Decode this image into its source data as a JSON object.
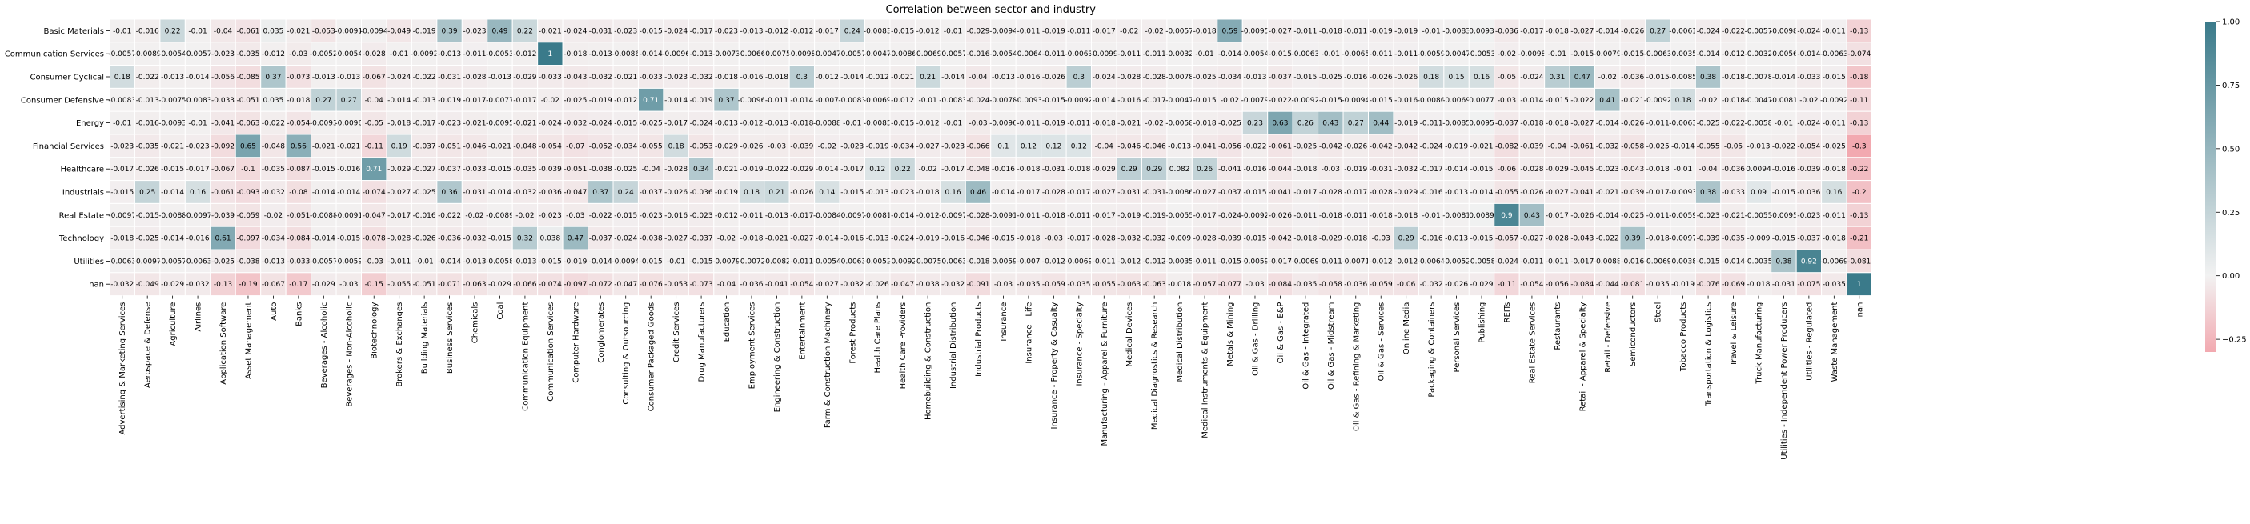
{
  "chart_data": {
    "type": "heatmap",
    "title": "Correlation between sector and industry",
    "xlabel": "",
    "ylabel": "",
    "rows": [
      "Basic Materials",
      "Communication Services",
      "Consumer Cyclical",
      "Consumer Defensive",
      "Energy",
      "Financial Services",
      "Healthcare",
      "Industrials",
      "Real Estate",
      "Technology",
      "Utilities",
      "nan"
    ],
    "columns": [
      "Advertising & Marketing Services",
      "Aerospace & Defense",
      "Agriculture",
      "Airlines",
      "Application Software",
      "Asset Management",
      "Auto",
      "Banks",
      "Beverages - Alcoholic",
      "Beverages - Non-Alcoholic",
      "Biotechnology",
      "Brokers & Exchanges",
      "Building Materials",
      "Business Services",
      "Chemicals",
      "Coal",
      "Communication Equipment",
      "Communication Services",
      "Computer Hardware",
      "Conglomerates",
      "Consulting & Outsourcing",
      "Consumer Packaged Goods",
      "Credit Services",
      "Drug Manufacturers",
      "Education",
      "Employment Services",
      "Engineering & Construction",
      "Entertainment",
      "Farm & Construction Machinery",
      "Forest Products",
      "Health Care Plans",
      "Health Care Providers",
      "Homebuilding & Construction",
      "Industrial Distribution",
      "Industrial Products",
      "Insurance",
      "Insurance - Life",
      "Insurance - Property & Casualty",
      "Insurance - Specialty",
      "Manufacturing - Apparel & Furniture",
      "Medical Devices",
      "Medical Diagnostics & Research",
      "Medical Distribution",
      "Medical Instruments & Equipment",
      "Metals & Mining",
      "Oil & Gas - Drilling",
      "Oil & Gas - E&P",
      "Oil & Gas - Integrated",
      "Oil & Gas - Midstream",
      "Oil & Gas - Refining & Marketing",
      "Oil & Gas - Services",
      "Online Media",
      "Packaging & Containers",
      "Personal Services",
      "Publishing",
      "REITs",
      "Real Estate Services",
      "Restaurants",
      "Retail - Apparel & Specialty",
      "Retail - Defensive",
      "Semiconductors",
      "Steel",
      "Tobacco Products",
      "Transportation & Logistics",
      "Travel & Leisure",
      "Truck Manufacturing",
      "Utilities - Independent Power Producers",
      "Utilities - Regulated",
      "Waste Management",
      "nan"
    ],
    "values": [
      [
        -0.01,
        -0.016,
        0.22,
        -0.01,
        -0.04,
        -0.061,
        0.035,
        -0.021,
        -0.053,
        -0.0091,
        -0.0094,
        -0.049,
        -0.019,
        0.39,
        -0.023,
        0.49,
        0.22,
        -0.021,
        -0.024,
        -0.031,
        -0.023,
        -0.015,
        -0.024,
        -0.017,
        -0.023,
        -0.013,
        -0.012,
        -0.012,
        -0.017,
        0.24,
        -0.0083,
        -0.015,
        -0.012,
        -0.01,
        -0.029,
        -0.0094,
        -0.011,
        -0.019,
        -0.011,
        -0.017,
        -0.02,
        -0.02,
        -0.0057,
        -0.018,
        0.59,
        -0.0095,
        -0.027,
        -0.011,
        -0.018,
        -0.011,
        -0.019,
        -0.019,
        -0.01,
        -0.0083,
        0.0093,
        -0.036,
        -0.017,
        -0.018,
        -0.027,
        -0.014,
        -0.026,
        0.27,
        -0.0061,
        -0.024,
        -0.022,
        -0.0057,
        -0.0098,
        -0.024,
        -0.011,
        -0.13
      ],
      [
        -0.0057,
        -0.0089,
        -0.0054,
        -0.0057,
        -0.023,
        -0.035,
        -0.012,
        -0.03,
        -0.0052,
        -0.0054,
        -0.028,
        -0.01,
        -0.0092,
        -0.013,
        -0.011,
        -0.0053,
        -0.012,
        1,
        -0.018,
        -0.013,
        -0.0086,
        -0.014,
        -0.0096,
        -0.013,
        -0.0073,
        -0.0066,
        -0.0075,
        -0.0098,
        -0.0047,
        -0.0057,
        -0.0047,
        -0.0086,
        -0.0069,
        -0.0057,
        -0.016,
        -0.0054,
        -0.0064,
        -0.011,
        -0.0063,
        -0.0099,
        -0.011,
        -0.011,
        -0.0032,
        -0.01,
        -0.014,
        -0.0054,
        -0.015,
        -0.0063,
        -0.01,
        -0.0065,
        -0.011,
        -0.011,
        -0.0059,
        -0.0047,
        -0.0053,
        -0.02,
        -0.0098,
        -0.01,
        -0.015,
        -0.0079,
        -0.015,
        -0.0063,
        -0.0035,
        -0.014,
        -0.012,
        -0.0032,
        -0.0056,
        -0.014,
        -0.0063,
        -0.074
      ],
      [
        0.18,
        -0.022,
        -0.013,
        -0.014,
        -0.056,
        -0.085,
        0.37,
        -0.073,
        -0.013,
        -0.013,
        -0.067,
        -0.024,
        -0.022,
        -0.031,
        -0.028,
        -0.013,
        -0.029,
        -0.033,
        -0.043,
        -0.032,
        -0.021,
        -0.033,
        -0.023,
        -0.032,
        -0.018,
        -0.016,
        -0.018,
        0.3,
        -0.012,
        -0.014,
        -0.012,
        -0.021,
        0.21,
        -0.014,
        -0.04,
        -0.013,
        -0.016,
        -0.026,
        0.3,
        -0.024,
        -0.028,
        -0.028,
        -0.0078,
        -0.025,
        -0.034,
        -0.013,
        -0.037,
        -0.015,
        -0.025,
        -0.016,
        -0.026,
        -0.026,
        0.18,
        0.15,
        0.16,
        -0.05,
        -0.024,
        0.31,
        0.47,
        -0.02,
        -0.036,
        -0.015,
        -0.0085,
        0.38,
        -0.018,
        -0.0078,
        -0.014,
        -0.033,
        -0.015,
        -0.18
      ],
      [
        -0.0083,
        -0.013,
        -0.0075,
        -0.0083,
        -0.033,
        -0.051,
        0.035,
        -0.018,
        0.27,
        0.27,
        -0.04,
        -0.014,
        -0.013,
        -0.019,
        -0.017,
        -0.0077,
        -0.017,
        -0.02,
        -0.025,
        -0.019,
        -0.012,
        0.71,
        -0.014,
        -0.019,
        0.37,
        -0.0096,
        -0.011,
        -0.014,
        -0.007,
        -0.0083,
        -0.0069,
        -0.012,
        -0.01,
        -0.0083,
        -0.024,
        -0.0078,
        -0.0093,
        -0.015,
        -0.0092,
        -0.014,
        -0.016,
        -0.017,
        -0.0047,
        -0.015,
        -0.02,
        -0.0079,
        -0.022,
        -0.0092,
        -0.015,
        -0.0094,
        -0.015,
        -0.016,
        -0.0086,
        -0.0069,
        0.0077,
        -0.03,
        -0.014,
        -0.015,
        -0.022,
        0.41,
        -0.021,
        -0.0092,
        0.18,
        -0.02,
        -0.018,
        -0.0047,
        -0.0081,
        -0.02,
        -0.0092,
        -0.11
      ],
      [
        -0.01,
        -0.016,
        -0.0093,
        -0.01,
        -0.041,
        -0.063,
        -0.022,
        -0.054,
        -0.0093,
        -0.0096,
        -0.05,
        -0.018,
        -0.017,
        -0.023,
        -0.021,
        -0.0095,
        -0.021,
        -0.024,
        -0.032,
        -0.024,
        -0.015,
        -0.025,
        -0.017,
        -0.024,
        -0.013,
        -0.012,
        -0.013,
        -0.018,
        -0.0088,
        -0.01,
        -0.0085,
        -0.015,
        -0.012,
        -0.01,
        -0.03,
        -0.0096,
        -0.011,
        -0.019,
        -0.011,
        -0.018,
        -0.021,
        -0.02,
        -0.0058,
        -0.018,
        -0.025,
        0.23,
        0.63,
        0.26,
        0.43,
        0.27,
        0.44,
        -0.019,
        -0.011,
        -0.0085,
        0.0095,
        -0.037,
        -0.018,
        -0.018,
        -0.027,
        -0.014,
        -0.026,
        -0.011,
        -0.0063,
        -0.025,
        -0.022,
        -0.0058,
        -0.01,
        -0.024,
        -0.011,
        -0.13
      ],
      [
        -0.023,
        -0.035,
        -0.021,
        -0.023,
        -0.092,
        0.65,
        -0.048,
        0.56,
        -0.021,
        -0.021,
        -0.11,
        0.19,
        -0.037,
        -0.051,
        -0.046,
        -0.021,
        -0.048,
        -0.054,
        -0.07,
        -0.052,
        -0.034,
        -0.055,
        0.18,
        -0.053,
        -0.029,
        -0.026,
        -0.03,
        -0.039,
        -0.02,
        -0.023,
        -0.019,
        -0.034,
        -0.027,
        -0.023,
        -0.066,
        0.1,
        0.12,
        0.12,
        0.12,
        -0.04,
        -0.046,
        -0.046,
        -0.013,
        -0.041,
        -0.056,
        -0.022,
        -0.061,
        -0.025,
        -0.042,
        -0.026,
        -0.042,
        -0.042,
        -0.024,
        -0.019,
        -0.021,
        -0.082,
        -0.039,
        -0.04,
        -0.061,
        -0.032,
        -0.058,
        -0.025,
        -0.014,
        -0.055,
        -0.05,
        -0.013,
        -0.022,
        -0.054,
        -0.025,
        -0.3
      ],
      [
        -0.017,
        -0.026,
        -0.015,
        -0.017,
        -0.067,
        -0.1,
        -0.035,
        -0.087,
        -0.015,
        -0.016,
        0.71,
        -0.029,
        -0.027,
        -0.037,
        -0.033,
        -0.015,
        -0.035,
        -0.039,
        -0.051,
        -0.038,
        -0.025,
        -0.04,
        -0.028,
        0.34,
        -0.021,
        -0.019,
        -0.022,
        -0.029,
        -0.014,
        -0.017,
        0.12,
        0.22,
        -0.02,
        -0.017,
        -0.048,
        -0.016,
        -0.018,
        -0.031,
        -0.018,
        -0.029,
        0.29,
        0.29,
        0.082,
        0.26,
        -0.041,
        -0.016,
        -0.044,
        -0.018,
        -0.03,
        -0.019,
        -0.031,
        -0.032,
        -0.017,
        -0.014,
        -0.015,
        -0.06,
        -0.028,
        -0.029,
        -0.045,
        -0.023,
        -0.043,
        -0.018,
        -0.01,
        -0.04,
        -0.036,
        0.0094,
        -0.016,
        -0.039,
        -0.018,
        -0.22
      ],
      [
        -0.015,
        0.25,
        -0.014,
        0.16,
        -0.061,
        -0.093,
        -0.032,
        -0.08,
        -0.014,
        -0.014,
        -0.074,
        -0.027,
        -0.025,
        0.36,
        -0.031,
        -0.014,
        -0.032,
        -0.036,
        -0.047,
        0.37,
        0.24,
        -0.037,
        -0.026,
        -0.036,
        -0.019,
        0.18,
        0.21,
        -0.026,
        0.14,
        -0.015,
        -0.013,
        -0.023,
        -0.018,
        0.16,
        0.46,
        -0.014,
        -0.017,
        -0.028,
        -0.017,
        -0.027,
        -0.031,
        -0.031,
        -0.0086,
        -0.027,
        -0.037,
        -0.015,
        -0.041,
        -0.017,
        -0.028,
        -0.017,
        -0.028,
        -0.029,
        -0.016,
        -0.013,
        -0.014,
        -0.055,
        -0.026,
        -0.027,
        -0.041,
        -0.021,
        -0.039,
        -0.017,
        -0.0093,
        0.38,
        -0.033,
        0.09,
        -0.015,
        -0.036,
        0.16,
        -0.2
      ],
      [
        -0.0097,
        -0.015,
        -0.0088,
        -0.0097,
        -0.039,
        -0.059,
        -0.02,
        -0.051,
        -0.0088,
        -0.0091,
        -0.047,
        -0.017,
        -0.016,
        -0.022,
        -0.02,
        -0.0089,
        -0.02,
        -0.023,
        -0.03,
        -0.022,
        -0.015,
        -0.023,
        -0.016,
        -0.023,
        -0.012,
        -0.011,
        -0.013,
        -0.017,
        -0.0084,
        -0.0097,
        -0.0081,
        -0.014,
        -0.012,
        -0.0097,
        -0.028,
        -0.0091,
        -0.011,
        -0.018,
        -0.011,
        -0.017,
        -0.019,
        -0.019,
        -0.0055,
        -0.017,
        -0.024,
        -0.0092,
        -0.026,
        -0.011,
        -0.018,
        -0.011,
        -0.018,
        -0.018,
        -0.01,
        -0.0081,
        0.0089,
        0.9,
        0.43,
        -0.017,
        -0.026,
        -0.014,
        -0.025,
        -0.011,
        -0.0059,
        -0.023,
        -0.021,
        -0.0055,
        -0.0095,
        -0.023,
        -0.011,
        -0.13
      ],
      [
        -0.018,
        -0.025,
        -0.014,
        -0.016,
        0.61,
        -0.097,
        -0.034,
        -0.084,
        -0.014,
        -0.015,
        -0.078,
        -0.028,
        -0.026,
        -0.036,
        -0.032,
        -0.015,
        0.32,
        0.038,
        0.47,
        -0.037,
        -0.024,
        -0.038,
        -0.027,
        -0.037,
        -0.02,
        -0.018,
        -0.021,
        -0.027,
        -0.014,
        -0.016,
        -0.013,
        -0.024,
        -0.019,
        -0.016,
        -0.046,
        -0.015,
        -0.018,
        -0.03,
        -0.017,
        -0.028,
        -0.032,
        -0.032,
        -0.009,
        -0.028,
        -0.039,
        -0.015,
        -0.042,
        -0.018,
        -0.029,
        -0.018,
        -0.03,
        0.29,
        -0.016,
        -0.013,
        -0.015,
        -0.057,
        -0.027,
        -0.028,
        -0.043,
        -0.022,
        0.39,
        -0.018,
        -0.0097,
        -0.039,
        -0.035,
        -0.009,
        -0.015,
        -0.037,
        -0.018,
        -0.21
      ],
      [
        -0.0063,
        -0.0097,
        -0.0057,
        -0.0063,
        -0.025,
        -0.038,
        -0.013,
        -0.033,
        -0.0057,
        -0.0059,
        -0.03,
        -0.011,
        -0.01,
        -0.014,
        -0.013,
        -0.0058,
        -0.013,
        -0.015,
        -0.019,
        -0.014,
        -0.0094,
        -0.015,
        -0.01,
        -0.015,
        -0.0079,
        -0.0072,
        -0.0082,
        -0.011,
        -0.0054,
        -0.0063,
        -0.0052,
        -0.0092,
        -0.0075,
        -0.0063,
        -0.018,
        -0.0059,
        -0.007,
        -0.012,
        -0.0069,
        -0.011,
        -0.012,
        -0.012,
        -0.0035,
        -0.011,
        -0.015,
        -0.0059,
        -0.017,
        -0.0069,
        -0.011,
        -0.0071,
        -0.012,
        -0.012,
        -0.0064,
        -0.0052,
        -0.0058,
        -0.024,
        -0.011,
        -0.011,
        -0.017,
        -0.0088,
        -0.016,
        -0.0069,
        -0.0038,
        -0.015,
        -0.014,
        -0.0035,
        0.38,
        0.92,
        -0.0069,
        -0.081
      ],
      [
        -0.032,
        -0.049,
        -0.029,
        -0.032,
        -0.13,
        -0.19,
        -0.067,
        -0.17,
        -0.029,
        -0.03,
        -0.15,
        -0.055,
        -0.051,
        -0.071,
        -0.063,
        -0.029,
        -0.066,
        -0.074,
        -0.097,
        -0.072,
        -0.047,
        -0.076,
        -0.053,
        -0.073,
        -0.04,
        -0.036,
        -0.041,
        -0.054,
        -0.027,
        -0.032,
        -0.026,
        -0.047,
        -0.038,
        -0.032,
        -0.091,
        -0.03,
        -0.035,
        -0.059,
        -0.035,
        -0.055,
        -0.063,
        -0.063,
        -0.018,
        -0.057,
        -0.077,
        -0.03,
        -0.084,
        -0.035,
        -0.058,
        -0.036,
        -0.059,
        -0.06,
        -0.032,
        -0.026,
        -0.029,
        -0.11,
        -0.054,
        -0.056,
        -0.084,
        -0.044,
        -0.081,
        -0.035,
        -0.019,
        -0.076,
        -0.069,
        -0.018,
        -0.031,
        -0.075,
        -0.035,
        1
      ]
    ],
    "colorbar": {
      "vmin": -0.3,
      "vmax": 1.0,
      "ticks": [
        -0.25,
        0.0,
        0.25,
        0.5,
        0.75,
        1.0
      ],
      "tick_labels": [
        "−0.25",
        "0.00",
        "0.25",
        "0.50",
        "0.75",
        "1.00"
      ],
      "low_color": "#f2a9b0",
      "mid_color": "#f2f2f2",
      "high_color": "#3a7a8a"
    },
    "grid": true,
    "legend": "colorbar-right"
  }
}
